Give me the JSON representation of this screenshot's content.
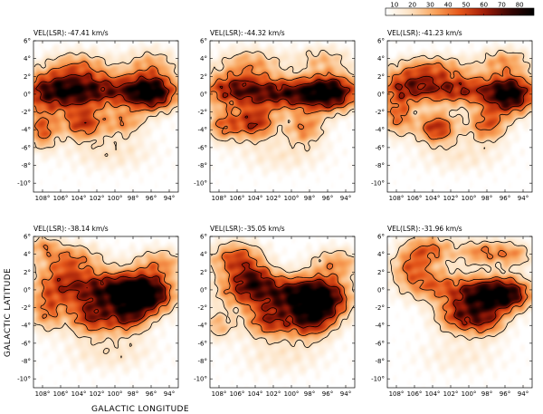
{
  "chart_data": {
    "type": "heatmap",
    "xlabel": "GALACTIC LONGITUDE",
    "ylabel": "GALACTIC LATITUDE",
    "x_range": [
      109,
      93
    ],
    "y_range": [
      -11,
      6
    ],
    "x_ticks": [
      108,
      106,
      104,
      102,
      100,
      98,
      96,
      94
    ],
    "y_ticks": [
      6,
      4,
      2,
      0,
      -2,
      -4,
      -6,
      -8,
      -10
    ],
    "x_tick_labels": [
      "108°",
      "106°",
      "104°",
      "102°",
      "100°",
      "98°",
      "96°",
      "94°"
    ],
    "y_tick_labels": [
      "6°",
      "4°",
      "2°",
      "0°",
      "-2°",
      "-4°",
      "-6°",
      "-8°",
      "-10°"
    ],
    "colorbar": {
      "ticks": [
        10,
        20,
        30,
        40,
        50,
        60,
        70,
        80
      ],
      "range": [
        5,
        88
      ],
      "colors": [
        "#ffffff",
        "#fde3c4",
        "#f9a35a",
        "#e5561a",
        "#a11c08",
        "#3a0503",
        "#000000"
      ],
      "contour_levels": [
        20,
        40,
        60
      ]
    },
    "panels": [
      {
        "velocity_label": "VEL(LSR):",
        "velocity": "-47.41 km/s",
        "blobs": [
          {
            "l": 106.5,
            "b": 0.3,
            "sl": 3.0,
            "sb": 1.5,
            "amp": 72
          },
          {
            "l": 101.0,
            "b": 0.4,
            "sl": 3.0,
            "sb": 1.3,
            "amp": 48
          },
          {
            "l": 96.0,
            "b": 0.2,
            "sl": 2.0,
            "sb": 1.4,
            "amp": 85
          },
          {
            "l": 103.5,
            "b": -3.3,
            "sl": 1.6,
            "sb": 1.2,
            "amp": 50
          },
          {
            "l": 108.0,
            "b": -4.0,
            "sl": 1.2,
            "sb": 1.5,
            "amp": 42
          },
          {
            "l": 99.0,
            "b": -3.2,
            "sl": 1.5,
            "sb": 1.0,
            "amp": 30
          },
          {
            "l": 104.0,
            "b": 3.2,
            "sl": 2.5,
            "sb": 1.2,
            "amp": 30
          },
          {
            "l": 96.0,
            "b": 3.5,
            "sl": 2.0,
            "sb": 1.2,
            "amp": 25
          },
          {
            "l": 100.5,
            "b": -6.5,
            "sl": 3.5,
            "sb": 1.5,
            "amp": 14
          }
        ]
      },
      {
        "velocity_label": "VEL(LSR):",
        "velocity": "-44.32 km/s",
        "blobs": [
          {
            "l": 106.0,
            "b": 0.5,
            "sl": 2.8,
            "sb": 1.3,
            "amp": 62
          },
          {
            "l": 100.5,
            "b": 0.0,
            "sl": 2.5,
            "sb": 1.2,
            "amp": 55
          },
          {
            "l": 95.8,
            "b": 0.2,
            "sl": 2.2,
            "sb": 1.4,
            "amp": 88
          },
          {
            "l": 104.0,
            "b": -3.2,
            "sl": 1.6,
            "sb": 1.3,
            "amp": 55
          },
          {
            "l": 107.5,
            "b": -3.5,
            "sl": 1.3,
            "sb": 1.3,
            "amp": 38
          },
          {
            "l": 98.5,
            "b": -3.8,
            "sl": 1.5,
            "sb": 1.3,
            "amp": 35
          },
          {
            "l": 104.5,
            "b": 3.5,
            "sl": 2.5,
            "sb": 1.2,
            "amp": 28
          },
          {
            "l": 96.5,
            "b": 4.0,
            "sl": 2.2,
            "sb": 1.0,
            "amp": 22
          },
          {
            "l": 101.0,
            "b": -7.0,
            "sl": 3.5,
            "sb": 1.3,
            "amp": 12
          }
        ]
      },
      {
        "velocity_label": "VEL(LSR):",
        "velocity": "-41.23 km/s",
        "blobs": [
          {
            "l": 106.5,
            "b": 0.8,
            "sl": 2.5,
            "sb": 1.3,
            "amp": 55
          },
          {
            "l": 101.0,
            "b": 0.5,
            "sl": 2.5,
            "sb": 1.2,
            "amp": 50
          },
          {
            "l": 95.5,
            "b": 0.0,
            "sl": 2.0,
            "sb": 1.5,
            "amp": 88
          },
          {
            "l": 103.5,
            "b": -3.8,
            "sl": 1.5,
            "sb": 1.2,
            "amp": 55
          },
          {
            "l": 98.0,
            "b": -3.5,
            "sl": 1.5,
            "sb": 1.3,
            "amp": 42
          },
          {
            "l": 107.8,
            "b": -2.5,
            "sl": 1.2,
            "sb": 1.5,
            "amp": 40
          },
          {
            "l": 104.0,
            "b": 3.0,
            "sl": 2.8,
            "sb": 1.0,
            "amp": 32
          },
          {
            "l": 96.0,
            "b": 3.8,
            "sl": 2.0,
            "sb": 1.0,
            "amp": 28
          },
          {
            "l": 101.0,
            "b": -7.0,
            "sl": 3.5,
            "sb": 1.3,
            "amp": 12
          }
        ]
      },
      {
        "velocity_label": "VEL(LSR):",
        "velocity": "-38.14 km/s",
        "blobs": [
          {
            "l": 105.5,
            "b": 0.5,
            "sl": 2.5,
            "sb": 1.5,
            "amp": 48
          },
          {
            "l": 100.0,
            "b": 0.0,
            "sl": 2.5,
            "sb": 1.4,
            "amp": 65
          },
          {
            "l": 96.5,
            "b": -0.5,
            "sl": 2.0,
            "sb": 1.5,
            "amp": 85
          },
          {
            "l": 102.5,
            "b": -3.0,
            "sl": 1.8,
            "sb": 1.4,
            "amp": 55
          },
          {
            "l": 98.5,
            "b": -3.0,
            "sl": 1.5,
            "sb": 1.3,
            "amp": 50
          },
          {
            "l": 107.5,
            "b": -2.5,
            "sl": 1.3,
            "sb": 1.5,
            "amp": 35
          },
          {
            "l": 105.0,
            "b": 3.5,
            "sl": 2.5,
            "sb": 1.2,
            "amp": 35
          },
          {
            "l": 95.0,
            "b": 3.0,
            "sl": 2.0,
            "sb": 1.2,
            "amp": 30
          },
          {
            "l": 108.0,
            "b": 5.0,
            "sl": 1.2,
            "sb": 0.8,
            "amp": 25
          },
          {
            "l": 100.5,
            "b": -7.0,
            "sl": 3.5,
            "sb": 1.5,
            "amp": 14
          }
        ]
      },
      {
        "velocity_label": "VEL(LSR):",
        "velocity": "-35.05 km/s",
        "blobs": [
          {
            "l": 105.0,
            "b": 0.0,
            "sl": 2.3,
            "sb": 1.4,
            "amp": 50
          },
          {
            "l": 100.0,
            "b": -0.5,
            "sl": 2.5,
            "sb": 1.4,
            "amp": 60
          },
          {
            "l": 96.5,
            "b": -1.0,
            "sl": 2.0,
            "sb": 1.6,
            "amp": 78
          },
          {
            "l": 102.5,
            "b": -3.5,
            "sl": 1.8,
            "sb": 1.3,
            "amp": 50
          },
          {
            "l": 98.0,
            "b": -3.5,
            "sl": 1.8,
            "sb": 1.4,
            "amp": 55
          },
          {
            "l": 106.0,
            "b": 3.5,
            "sl": 2.0,
            "sb": 1.3,
            "amp": 48
          },
          {
            "l": 104.0,
            "b": 1.5,
            "sl": 1.5,
            "sb": 1.0,
            "amp": 30
          },
          {
            "l": 95.0,
            "b": 3.0,
            "sl": 2.0,
            "sb": 1.2,
            "amp": 30
          },
          {
            "l": 108.0,
            "b": -4.0,
            "sl": 1.2,
            "sb": 1.2,
            "amp": 25
          },
          {
            "l": 101.0,
            "b": -7.5,
            "sl": 3.5,
            "sb": 1.5,
            "amp": 12
          }
        ]
      },
      {
        "velocity_label": "VEL(LSR):",
        "velocity": "-31.96 km/s",
        "blobs": [
          {
            "l": 104.0,
            "b": 0.5,
            "sl": 2.5,
            "sb": 1.3,
            "amp": 38
          },
          {
            "l": 98.5,
            "b": -0.5,
            "sl": 2.2,
            "sb": 1.3,
            "amp": 70
          },
          {
            "l": 95.5,
            "b": -0.5,
            "sl": 1.8,
            "sb": 1.3,
            "amp": 60
          },
          {
            "l": 101.0,
            "b": -3.0,
            "sl": 1.8,
            "sb": 1.3,
            "amp": 50
          },
          {
            "l": 98.0,
            "b": -3.5,
            "sl": 1.5,
            "sb": 1.2,
            "amp": 42
          },
          {
            "l": 104.5,
            "b": 4.5,
            "sl": 2.0,
            "sb": 1.2,
            "amp": 40
          },
          {
            "l": 98.5,
            "b": 4.2,
            "sl": 1.8,
            "sb": 1.0,
            "amp": 35
          },
          {
            "l": 106.5,
            "b": 2.5,
            "sl": 1.5,
            "sb": 1.2,
            "amp": 30
          },
          {
            "l": 95.0,
            "b": 4.0,
            "sl": 1.5,
            "sb": 1.0,
            "amp": 28
          },
          {
            "l": 101.0,
            "b": -7.5,
            "sl": 3.5,
            "sb": 1.5,
            "amp": 10
          }
        ]
      }
    ]
  }
}
